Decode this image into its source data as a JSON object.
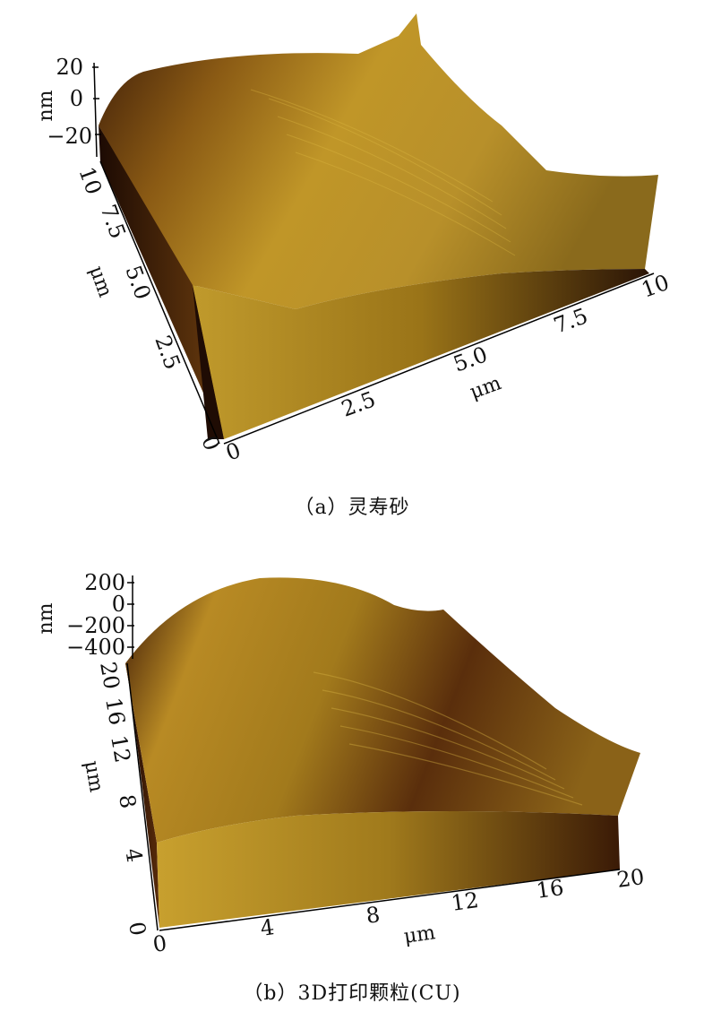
{
  "panel_a": {
    "caption": "（a）灵寿砂",
    "z_ticks": [
      "20",
      "0",
      "−20"
    ],
    "z_unit": "nm",
    "y_ticks": [
      "10",
      "7.5",
      "5.0",
      "2.5",
      "0"
    ],
    "y_unit": "μm",
    "x_ticks": [
      "0",
      "2.5",
      "5.0",
      "7.5",
      "10"
    ],
    "x_unit": "μm"
  },
  "panel_b": {
    "caption": "（b）3D打印颗粒(CU)",
    "z_ticks": [
      "200",
      "0",
      "−200",
      "−400"
    ],
    "z_unit": "nm",
    "y_ticks": [
      "20",
      "16",
      "12",
      "8",
      "4",
      "0"
    ],
    "y_unit": "μm",
    "x_ticks": [
      "0",
      "4",
      "8",
      "12",
      "16",
      "20"
    ],
    "x_unit": "μm"
  },
  "colors": {
    "dark": "#2a1206",
    "mid": "#8a5410",
    "light": "#c9a02a",
    "highlight": "#e2c048"
  }
}
